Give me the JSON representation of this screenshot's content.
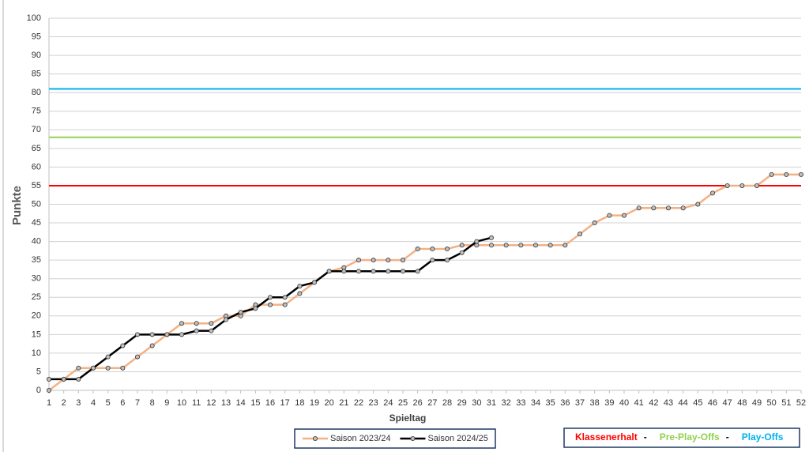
{
  "chart_data": {
    "type": "line",
    "x_label": "Spieltag",
    "y_label": "Punkte",
    "x": [
      1,
      2,
      3,
      4,
      5,
      6,
      7,
      8,
      9,
      10,
      11,
      12,
      13,
      14,
      15,
      16,
      17,
      18,
      19,
      20,
      21,
      22,
      23,
      24,
      25,
      26,
      27,
      28,
      29,
      30,
      31,
      32,
      33,
      34,
      35,
      36,
      37,
      38,
      39,
      40,
      41,
      42,
      43,
      44,
      45,
      46,
      47,
      48,
      49,
      50,
      51,
      52
    ],
    "xlim": [
      1,
      52
    ],
    "xticks": [
      1,
      2,
      3,
      4,
      5,
      6,
      7,
      8,
      9,
      10,
      11,
      12,
      13,
      14,
      15,
      16,
      17,
      18,
      19,
      20,
      21,
      22,
      23,
      24,
      25,
      26,
      27,
      28,
      29,
      30,
      31,
      32,
      33,
      34,
      35,
      36,
      37,
      38,
      39,
      40,
      41,
      42,
      43,
      44,
      45,
      46,
      47,
      48,
      49,
      50,
      51,
      52
    ],
    "ylim": [
      0,
      100
    ],
    "yticks": [
      0,
      5,
      10,
      15,
      20,
      25,
      30,
      35,
      40,
      45,
      50,
      55,
      60,
      65,
      70,
      75,
      80,
      85,
      90,
      95,
      100
    ],
    "grid": true,
    "series": [
      {
        "name": "Saison 2023/24",
        "color": "#f4b183",
        "values": [
          0,
          3,
          6,
          6,
          6,
          6,
          9,
          12,
          15,
          18,
          18,
          18,
          20,
          20,
          23,
          23,
          23,
          26,
          29,
          32,
          33,
          35,
          35,
          35,
          35,
          38,
          38,
          38,
          39,
          39,
          39,
          39,
          39,
          39,
          39,
          39,
          42,
          45,
          47,
          47,
          49,
          49,
          49,
          49,
          50,
          53,
          55,
          55,
          55,
          58,
          58,
          58
        ]
      },
      {
        "name": "Saison 2024/25",
        "color": "#000000",
        "values": [
          3,
          3,
          3,
          6,
          9,
          12,
          15,
          15,
          15,
          15,
          16,
          16,
          19,
          21,
          22,
          25,
          25,
          28,
          29,
          32,
          32,
          32,
          32,
          32,
          32,
          32,
          35,
          35,
          37,
          40,
          41,
          null,
          null,
          null,
          null,
          null,
          null,
          null,
          null,
          null,
          null,
          null,
          null,
          null,
          null,
          null,
          null,
          null,
          null,
          null,
          null,
          null
        ]
      }
    ],
    "reference_lines": [
      {
        "name": "Klassenerhalt",
        "value": 55,
        "color": "#ff0000"
      },
      {
        "name": "Pre-Play-Offs",
        "value": 68,
        "color": "#92d050"
      },
      {
        "name": "Play-Offs",
        "value": 81,
        "color": "#00b0f0"
      }
    ],
    "legend_separator": "-"
  }
}
